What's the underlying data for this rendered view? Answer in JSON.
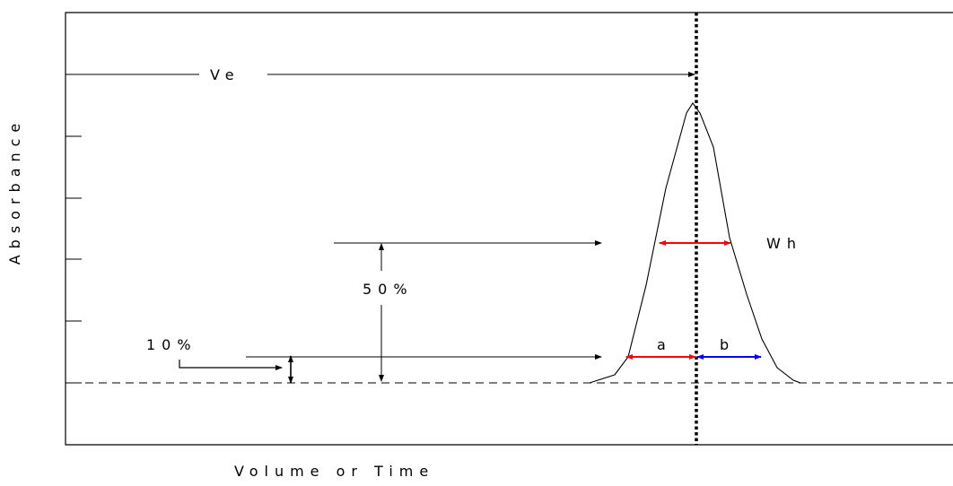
{
  "labels": {
    "ve": "Ve",
    "wh": "Wh",
    "half": "50%",
    "ten": "10%",
    "a": "a",
    "b": "b",
    "ylabel": "Absorbance",
    "xlabel": "Volume or Time"
  },
  "colors": {
    "ink": "#000000",
    "width_a_and_wh": "#ff0000",
    "width_b": "#0000ff"
  }
}
